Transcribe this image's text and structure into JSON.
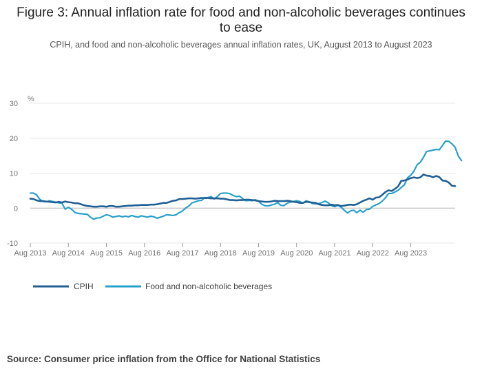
{
  "header": {
    "title": "Figure 3: Annual inflation rate for food and non-alcoholic beverages continues to ease",
    "subtitle": "CPIH, and food and non-alcoholic beverages annual inflation rates, UK, August 2013 to August 2023"
  },
  "footer": {
    "source": "Source: Consumer price inflation from the Office for National Statistics"
  },
  "colors": {
    "cpih": "#206095",
    "food": "#27a0cc",
    "grid": "#e6e6e6",
    "zero_line": "#b3b3b3"
  },
  "chart_data": {
    "type": "line",
    "title": "Figure 3: Annual inflation rate for food and non-alcoholic beverages continues to ease",
    "subtitle": "CPIH, and food and non-alcoholic beverages annual inflation rates, UK, August 2013 to August 2023",
    "ylabel": "%",
    "xlabel": "",
    "ylim": [
      -10,
      30
    ],
    "yticks": [
      -10,
      0,
      10,
      20,
      30
    ],
    "xticks": [
      "Aug 2013",
      "Aug 2014",
      "Aug 2015",
      "Aug 2016",
      "Aug 2017",
      "Aug 2018",
      "Aug 2019",
      "Aug 2020",
      "Aug 2021",
      "Aug 2022",
      "Aug 2023"
    ],
    "grid": true,
    "legend": "bottom-left",
    "x_start": "Aug 2013",
    "x_frequency": "monthly",
    "series": [
      {
        "name": "CPIH",
        "values": [
          2.7,
          2.6,
          2.2,
          2.0,
          2.0,
          1.9,
          1.8,
          1.7,
          1.6,
          1.8,
          1.6,
          1.9,
          1.7,
          1.6,
          1.4,
          1.4,
          1.1,
          0.8,
          0.6,
          0.5,
          0.4,
          0.4,
          0.5,
          0.5,
          0.4,
          0.6,
          0.6,
          0.4,
          0.4,
          0.5,
          0.6,
          0.7,
          0.7,
          0.8,
          0.8,
          0.9,
          0.9,
          0.9,
          1.0,
          1.0,
          1.1,
          1.3,
          1.5,
          1.5,
          1.8,
          2.1,
          2.2,
          2.6,
          2.6,
          2.7,
          2.8,
          2.8,
          2.7,
          2.8,
          2.9,
          2.9,
          2.9,
          2.8,
          2.8,
          2.8,
          2.7,
          2.7,
          2.5,
          2.3,
          2.3,
          2.2,
          2.3,
          2.3,
          2.4,
          2.4,
          2.3,
          2.2,
          2.0,
          1.9,
          1.8,
          1.8,
          1.9,
          2.1,
          2.0,
          2.0,
          2.0,
          2.1,
          2.0,
          1.8,
          1.7,
          1.5,
          1.5,
          1.8,
          1.7,
          1.6,
          1.5,
          1.1,
          0.9,
          0.8,
          0.8,
          1.0,
          0.8,
          0.9,
          0.6,
          0.7,
          0.9,
          1.0,
          0.9,
          1.1,
          1.6,
          2.1,
          2.4,
          2.8,
          2.4,
          3.0,
          3.1,
          3.8,
          4.6,
          5.1,
          4.9,
          5.5,
          6.2,
          7.8,
          7.9,
          8.2,
          8.6,
          8.8,
          8.6,
          8.8,
          9.6,
          9.3,
          9.2,
          8.8,
          9.2,
          8.9,
          7.9,
          7.8,
          7.3,
          6.4,
          6.3
        ]
      },
      {
        "name": "Food and non-alcoholic beverages",
        "values": [
          4.3,
          4.3,
          3.8,
          2.5,
          1.9,
          1.8,
          2.1,
          1.9,
          1.7,
          1.5,
          1.4,
          -0.3,
          0.2,
          -0.3,
          -1.2,
          -1.5,
          -1.6,
          -1.7,
          -1.8,
          -2.6,
          -3.2,
          -2.8,
          -2.8,
          -2.3,
          -1.9,
          -2.1,
          -2.6,
          -2.4,
          -2.2,
          -2.5,
          -2.3,
          -2.5,
          -2.1,
          -2.4,
          -2.6,
          -2.2,
          -2.4,
          -2.6,
          -2.3,
          -2.5,
          -2.9,
          -2.6,
          -2.3,
          -1.9,
          -2.0,
          -2.1,
          -1.9,
          -1.3,
          -0.8,
          0.0,
          0.6,
          1.5,
          1.8,
          2.1,
          2.2,
          3.0,
          3.0,
          3.3,
          2.6,
          3.3,
          4.2,
          4.3,
          4.3,
          4.1,
          3.6,
          3.3,
          3.4,
          2.7,
          2.1,
          2.2,
          2.1,
          2.4,
          2.0,
          1.1,
          0.7,
          0.6,
          0.9,
          1.1,
          1.6,
          0.8,
          0.7,
          1.4,
          1.7,
          1.9,
          2.1,
          1.9,
          1.4,
          2.1,
          1.8,
          1.3,
          1.2,
          1.3,
          1.6,
          2.0,
          1.5,
          0.7,
          0.4,
          0.8,
          0.3,
          -0.6,
          -1.4,
          -0.8,
          -0.6,
          -1.3,
          -0.6,
          -1.2,
          -0.4,
          -0.3,
          0.5,
          0.9,
          1.3,
          2.0,
          2.9,
          4.2,
          4.2,
          4.6,
          5.1,
          5.9,
          6.7,
          8.7,
          9.4,
          10.6,
          12.4,
          13.1,
          14.5,
          16.2,
          16.4,
          16.6,
          16.8,
          16.7,
          17.9,
          19.2,
          19.1,
          18.4,
          17.4,
          14.9,
          13.6
        ]
      }
    ]
  }
}
